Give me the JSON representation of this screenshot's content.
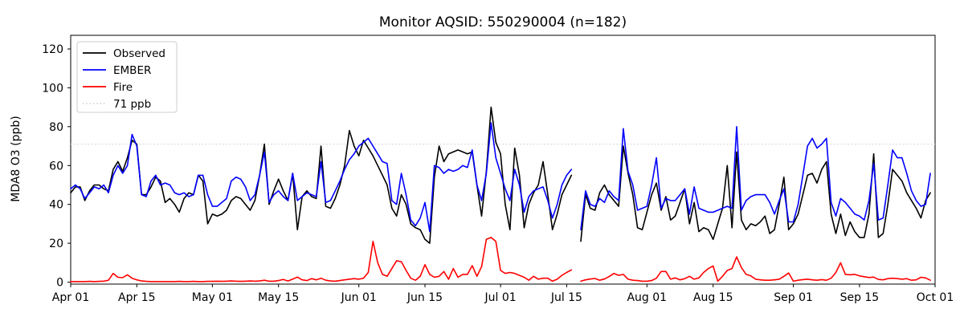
{
  "figure": {
    "background": "#ffffff",
    "text_color": "#000000"
  },
  "chart_data": {
    "type": "line",
    "title": "Monitor AQSID: 550290004 (n=182)",
    "xlabel": "",
    "ylabel": "MDA8 O3 (ppb)",
    "ylim": [
      -1,
      127
    ],
    "yticks": [
      0,
      20,
      40,
      60,
      80,
      100,
      120
    ],
    "grid": false,
    "legend_position": "upper-left",
    "x_total_days": 183,
    "x_start": "Apr 01",
    "x_end": "Oct 01",
    "x_tick_labels": [
      "Apr 01",
      "Apr 15",
      "May 01",
      "May 15",
      "Jun 01",
      "Jun 15",
      "Jul 01",
      "Jul 15",
      "Aug 01",
      "Aug 15",
      "Sep 01",
      "Sep 15",
      "Oct 01"
    ],
    "x_tick_days": [
      0,
      14,
      30,
      44,
      61,
      75,
      91,
      105,
      122,
      136,
      153,
      167,
      183
    ],
    "data_gap_note": "values are daily from Apr 01 through Sep 30; null = missing day (mid-July gap)",
    "threshold": {
      "label": "71 ppb",
      "value": 71,
      "color": "#d3d3d3",
      "style": "dotted"
    },
    "series": [
      {
        "name": "Observed",
        "color": "#000000",
        "values": [
          46,
          49,
          49,
          42,
          47,
          50,
          50,
          48,
          47,
          58,
          62,
          57,
          64,
          73,
          71,
          45,
          45,
          49,
          54,
          52,
          41,
          43,
          40,
          36,
          43,
          46,
          45,
          55,
          52,
          30,
          35,
          34,
          35,
          37,
          42,
          44,
          43,
          40,
          37,
          42,
          55,
          71,
          40,
          47,
          53,
          47,
          42,
          56,
          27,
          44,
          47,
          44,
          43,
          70,
          39,
          38,
          43,
          50,
          60,
          78,
          70,
          65,
          73,
          69,
          65,
          60,
          55,
          50,
          38,
          34,
          45,
          40,
          30,
          28,
          27,
          22,
          20,
          54,
          70,
          62,
          66,
          67,
          68,
          67,
          66,
          67,
          50,
          34,
          57,
          90,
          72,
          66,
          40,
          27,
          69,
          55,
          28,
          40,
          46,
          50,
          62,
          45,
          27,
          35,
          45,
          50,
          55,
          null,
          21,
          45,
          38,
          37,
          46,
          50,
          45,
          42,
          39,
          70,
          56,
          45,
          28,
          27,
          36,
          45,
          51,
          37,
          44,
          32,
          34,
          41,
          48,
          30,
          41,
          26,
          28,
          27,
          22,
          30,
          38,
          60,
          28,
          67,
          32,
          27,
          30,
          29,
          31,
          34,
          25,
          27,
          40,
          54,
          27,
          30,
          35,
          45,
          55,
          56,
          51,
          58,
          62,
          35,
          25,
          35,
          24,
          31,
          26,
          23,
          23,
          35,
          66,
          23,
          25,
          40,
          58,
          55,
          52,
          46,
          42,
          38,
          33,
          42,
          46
        ]
      },
      {
        "name": "EMBER",
        "color": "#0000ff",
        "values": [
          48,
          50,
          48,
          43,
          46,
          49,
          48,
          50,
          46,
          55,
          60,
          56,
          60,
          76,
          70,
          45,
          44,
          52,
          55,
          50,
          51,
          50,
          46,
          45,
          46,
          44,
          45,
          55,
          55,
          45,
          39,
          39,
          41,
          43,
          52,
          54,
          53,
          49,
          42,
          45,
          55,
          67,
          41,
          45,
          47,
          44,
          42,
          56,
          42,
          44,
          46,
          45,
          44,
          62,
          41,
          42,
          47,
          52,
          58,
          63,
          66,
          70,
          72,
          74,
          70,
          66,
          62,
          61,
          42,
          40,
          56,
          45,
          32,
          29,
          33,
          41,
          26,
          60,
          59,
          56,
          58,
          57,
          58,
          60,
          59,
          68,
          50,
          42,
          56,
          82,
          64,
          56,
          48,
          42,
          58,
          50,
          36,
          44,
          47,
          48,
          49,
          42,
          33,
          40,
          50,
          55,
          58,
          null,
          27,
          47,
          40,
          39,
          43,
          41,
          47,
          44,
          42,
          79,
          57,
          50,
          37,
          38,
          39,
          50,
          64,
          38,
          43,
          42,
          42,
          45,
          48,
          35,
          49,
          38,
          37,
          36,
          36,
          37,
          38,
          39,
          38,
          80,
          37,
          42,
          44,
          45,
          45,
          45,
          41,
          35,
          42,
          48,
          31,
          31,
          40,
          55,
          70,
          74,
          69,
          71,
          74,
          41,
          34,
          43,
          41,
          38,
          35,
          34,
          32,
          42,
          61,
          32,
          33,
          50,
          68,
          64,
          64,
          56,
          47,
          42,
          39,
          40,
          56
        ]
      },
      {
        "name": "Fire",
        "color": "#ff0000",
        "values": [
          0.3,
          0.3,
          0.3,
          0.3,
          0.4,
          0.3,
          0.4,
          0.5,
          1,
          4.5,
          2.5,
          2.3,
          3.8,
          2,
          1.2,
          0.6,
          0.4,
          0.3,
          0.3,
          0.3,
          0.3,
          0.3,
          0.3,
          0.4,
          0.3,
          0.3,
          0.4,
          0.3,
          0.3,
          0.4,
          0.4,
          0.5,
          0.4,
          0.5,
          0.6,
          0.5,
          0.4,
          0.5,
          0.6,
          0.5,
          0.6,
          1,
          0.5,
          0.5,
          0.8,
          1.4,
          0.6,
          1.5,
          2.6,
          1.2,
          0.8,
          1.8,
          1.2,
          2,
          1,
          0.6,
          0.5,
          0.8,
          1.2,
          1.5,
          1.8,
          1.5,
          2,
          5,
          21,
          10,
          4,
          3,
          7,
          11,
          10.5,
          6,
          2,
          1,
          3,
          9,
          4,
          2.5,
          3,
          5.5,
          1.5,
          7,
          2.5,
          4,
          4,
          8.5,
          3,
          8,
          22,
          23,
          21,
          6,
          4.5,
          5,
          4.5,
          3.5,
          2.5,
          1,
          3,
          1.5,
          2,
          2,
          0.5,
          1.5,
          3.5,
          5,
          6.3,
          null,
          0.5,
          1.2,
          1.6,
          1.9,
          1,
          1.6,
          2.9,
          4.5,
          3.5,
          4,
          1.5,
          1,
          0.8,
          0.5,
          0.5,
          0.8,
          2,
          5.5,
          5.5,
          1.5,
          2.2,
          1.2,
          1.8,
          3,
          1.5,
          2.2,
          5,
          7,
          8.3,
          0.5,
          3,
          6,
          7,
          13,
          7.5,
          4,
          3.2,
          1.5,
          1.2,
          1,
          1,
          1.2,
          1.5,
          3,
          4.7,
          0.5,
          1,
          1.3,
          1.5,
          1.2,
          1,
          1.3,
          1,
          2,
          5,
          10,
          4,
          3.8,
          4,
          3.2,
          2.8,
          2.4,
          2.6,
          1.4,
          1.2,
          1.8,
          2,
          1.8,
          1.5,
          1.8,
          1,
          1.2,
          2.5,
          2.2,
          1
        ]
      }
    ]
  }
}
